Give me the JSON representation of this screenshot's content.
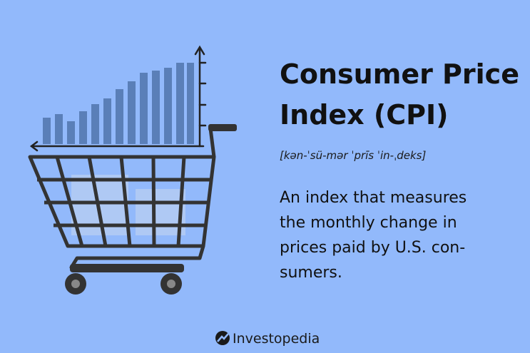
{
  "header": {
    "title_lines": [
      "Consumer Price",
      "Index (CPI)"
    ],
    "pronunciation": "[kən-ˈsü-mər ˈprīs ˈin-ˌdeks]"
  },
  "definition_lines": [
    "An index that measures",
    "the monthly change in",
    "prices paid by U.S. con-",
    "sumers."
  ],
  "brand": "Investopedia"
}
